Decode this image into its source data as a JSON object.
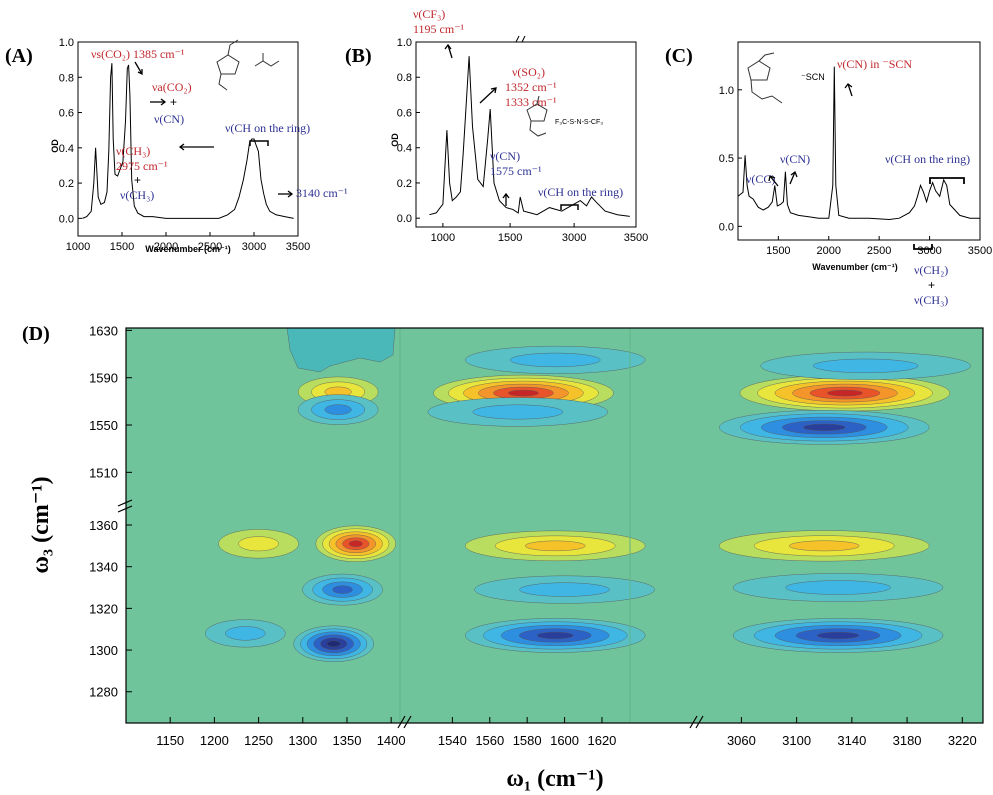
{
  "chart_data": [
    {
      "panel": "(A)",
      "type": "line",
      "xlabel": "Wavenumber (cm⁻¹)",
      "ylabel": "OD",
      "xlim": [
        1000,
        3500
      ],
      "ylim": [
        0,
        1.0
      ],
      "xticks": [
        "1000",
        "1500",
        "2000",
        "2500",
        "3000",
        "3500"
      ],
      "yticks": [
        "0.0",
        "0.2",
        "0.4",
        "0.6",
        "0.8",
        "1.0"
      ],
      "x": [
        1050,
        1100,
        1150,
        1180,
        1200,
        1230,
        1260,
        1300,
        1330,
        1350,
        1370,
        1385,
        1400,
        1420,
        1450,
        1480,
        1510,
        1540,
        1560,
        1575,
        1590,
        1610,
        1640,
        1680,
        1750,
        1850,
        2000,
        2200,
        2400,
        2600,
        2700,
        2780,
        2830,
        2880,
        2920,
        2950,
        2975,
        3000,
        3020,
        3050,
        3080,
        3110,
        3140,
        3180,
        3250,
        3350,
        3450
      ],
      "y": [
        0.0,
        0.01,
        0.04,
        0.2,
        0.4,
        0.12,
        0.08,
        0.09,
        0.15,
        0.38,
        0.8,
        0.88,
        0.45,
        0.25,
        0.24,
        0.28,
        0.32,
        0.55,
        0.85,
        0.87,
        0.7,
        0.22,
        0.07,
        0.03,
        0.01,
        0.01,
        0.0,
        0.0,
        0.0,
        0.0,
        0.02,
        0.05,
        0.12,
        0.22,
        0.33,
        0.43,
        0.45,
        0.45,
        0.42,
        0.38,
        0.22,
        0.14,
        0.08,
        0.04,
        0.02,
        0.01,
        0.0
      ],
      "annotations": {
        "vs_co2_text": "νs(CO₂) 1385 cm⁻¹",
        "va_co2_text": "νa(CO₂)",
        "plus": "+",
        "v_cn": "ν(CN)",
        "v_ch3": "ν(CH₃)",
        "v_ch3_wn": "2975 cm⁻¹",
        "v_ch_ring": "ν(CH on the ring)",
        "wn_3140": "3140 cm⁻¹"
      }
    },
    {
      "panel": "(B)",
      "type": "line",
      "xlabel": "",
      "ylabel": "OD",
      "xlim": [
        800,
        3500
      ],
      "ylim": [
        0,
        1.0
      ],
      "xticks": [
        "1000",
        "1500",
        "3000",
        "3500"
      ],
      "yticks": [
        "0.0",
        "0.2",
        "0.4",
        "0.6",
        "0.8",
        "1.0"
      ],
      "x": [
        900,
        950,
        1000,
        1030,
        1050,
        1070,
        1100,
        1130,
        1150,
        1170,
        1195,
        1220,
        1260,
        1300,
        1333,
        1352,
        1380,
        1420,
        1470,
        1520,
        1560,
        1575,
        1600,
        1650,
        1700,
        2700,
        2800,
        2900,
        3000,
        3050,
        3100,
        3140,
        3180,
        3250,
        3350,
        3450
      ],
      "y": [
        0.02,
        0.03,
        0.08,
        0.5,
        0.2,
        0.1,
        0.12,
        0.15,
        0.36,
        0.6,
        0.92,
        0.52,
        0.22,
        0.18,
        0.45,
        0.62,
        0.2,
        0.1,
        0.06,
        0.05,
        0.03,
        0.12,
        0.04,
        0.03,
        0.02,
        0.02,
        0.06,
        0.04,
        0.08,
        0.1,
        0.07,
        0.12,
        0.09,
        0.04,
        0.02,
        0.01
      ],
      "annotations": {
        "v_cf3": "ν(CF₃)",
        "v_cf3_wn": "1195 cm⁻¹",
        "v_so2": "ν(SO₂)",
        "v_so2_wn1": "1352 cm⁻¹",
        "v_so2_wn2": "1333 cm⁻¹",
        "v_cn": "ν(CN)",
        "v_cn_wn": "1575 cm⁻¹",
        "v_ch_ring": "ν(CH on the ring)"
      }
    },
    {
      "panel": "(C)",
      "type": "line",
      "xlabel": "Wavenumber (cm⁻¹)",
      "ylabel": "",
      "xlim": [
        1100,
        3500
      ],
      "ylim": [
        -0.1,
        1.35
      ],
      "xticks": [
        "1500",
        "2000",
        "2500",
        "3000",
        "3500"
      ],
      "yticks": [
        "0.0",
        "0.5",
        "1.0"
      ],
      "x": [
        1100,
        1150,
        1170,
        1190,
        1210,
        1250,
        1300,
        1350,
        1400,
        1440,
        1465,
        1490,
        1520,
        1550,
        1570,
        1590,
        1620,
        1700,
        1800,
        1900,
        2000,
        2040,
        2055,
        2070,
        2100,
        2200,
        2400,
        2600,
        2700,
        2800,
        2850,
        2880,
        2910,
        2940,
        2970,
        3000,
        3030,
        3060,
        3100,
        3140,
        3170,
        3200,
        3300,
        3400,
        3500
      ],
      "y": [
        0.22,
        0.25,
        0.52,
        0.3,
        0.22,
        0.2,
        0.14,
        0.12,
        0.14,
        0.18,
        0.3,
        0.15,
        0.16,
        0.18,
        0.4,
        0.16,
        0.1,
        0.08,
        0.07,
        0.06,
        0.06,
        0.3,
        1.17,
        0.3,
        0.08,
        0.06,
        0.06,
        0.05,
        0.06,
        0.1,
        0.15,
        0.22,
        0.3,
        0.25,
        0.18,
        0.26,
        0.32,
        0.26,
        0.22,
        0.34,
        0.3,
        0.16,
        0.08,
        0.06,
        0.06
      ],
      "annotations": {
        "v_cn_scn": "ν(CN) in ⁻SCN",
        "v_cc": "ν(CC)",
        "v_cn": "ν(CN)",
        "v_ch_ring": "ν(CH on the ring)",
        "v_ch2": "ν(CH₂)",
        "plus": "+",
        "v_ch3": "ν(CH₃)",
        "scn_label": "⁻SCN"
      }
    },
    {
      "panel": "(D)",
      "type": "heatmap",
      "xlabel": "ω₁ (cm⁻¹)",
      "ylabel": "ω₃ (cm⁻¹)",
      "x_segments": [
        {
          "xlim": [
            1100,
            1410
          ],
          "xticks": [
            "1150",
            "1200",
            "1250",
            "1300",
            "1350",
            "1400"
          ]
        },
        {
          "xlim": [
            1520,
            1635
          ],
          "xticks": [
            "1540",
            "1560",
            "1580",
            "1600",
            "1620"
          ]
        },
        {
          "xlim": [
            3030,
            3235
          ],
          "xticks": [
            "3060",
            "3100",
            "3140",
            "3180",
            "3220"
          ]
        }
      ],
      "y_segments": [
        {
          "ylim": [
            1265,
            1372
          ],
          "yticks": [
            "1280",
            "1300",
            "1320",
            "1340",
            "1360"
          ]
        },
        {
          "ylim": [
            1490,
            1632
          ],
          "yticks": [
            "1510",
            "1550",
            "1590",
            "1630"
          ]
        }
      ],
      "background_color": "#6fc49b",
      "peaks": [
        {
          "x": 1335,
          "y": 1303,
          "amp": -1.0
        },
        {
          "x": 1345,
          "y": 1329,
          "amp": -0.6
        },
        {
          "x": 1360,
          "y": 1351,
          "amp": 1.0
        },
        {
          "x": 1250,
          "y": 1351,
          "amp": 0.4
        },
        {
          "x": 1235,
          "y": 1308,
          "amp": -0.3
        },
        {
          "x": 1340,
          "y": 1578,
          "amp": 0.5
        },
        {
          "x": 1340,
          "y": 1563,
          "amp": -0.5
        },
        {
          "x": 1578,
          "y": 1577,
          "amp": 1.0
        },
        {
          "x": 1575,
          "y": 1561,
          "amp": -0.4
        },
        {
          "x": 1595,
          "y": 1605,
          "amp": -0.3
        },
        {
          "x": 1595,
          "y": 1350,
          "amp": 0.5
        },
        {
          "x": 1595,
          "y": 1307,
          "amp": -0.85
        },
        {
          "x": 1600,
          "y": 1329,
          "amp": -0.3
        },
        {
          "x": 3135,
          "y": 1577,
          "amp": 1.0
        },
        {
          "x": 3120,
          "y": 1548,
          "amp": -0.85
        },
        {
          "x": 3150,
          "y": 1600,
          "amp": -0.3
        },
        {
          "x": 3120,
          "y": 1350,
          "amp": 0.55
        },
        {
          "x": 3130,
          "y": 1307,
          "amp": -0.85
        },
        {
          "x": 3130,
          "y": 1330,
          "amp": -0.35
        }
      ]
    }
  ]
}
